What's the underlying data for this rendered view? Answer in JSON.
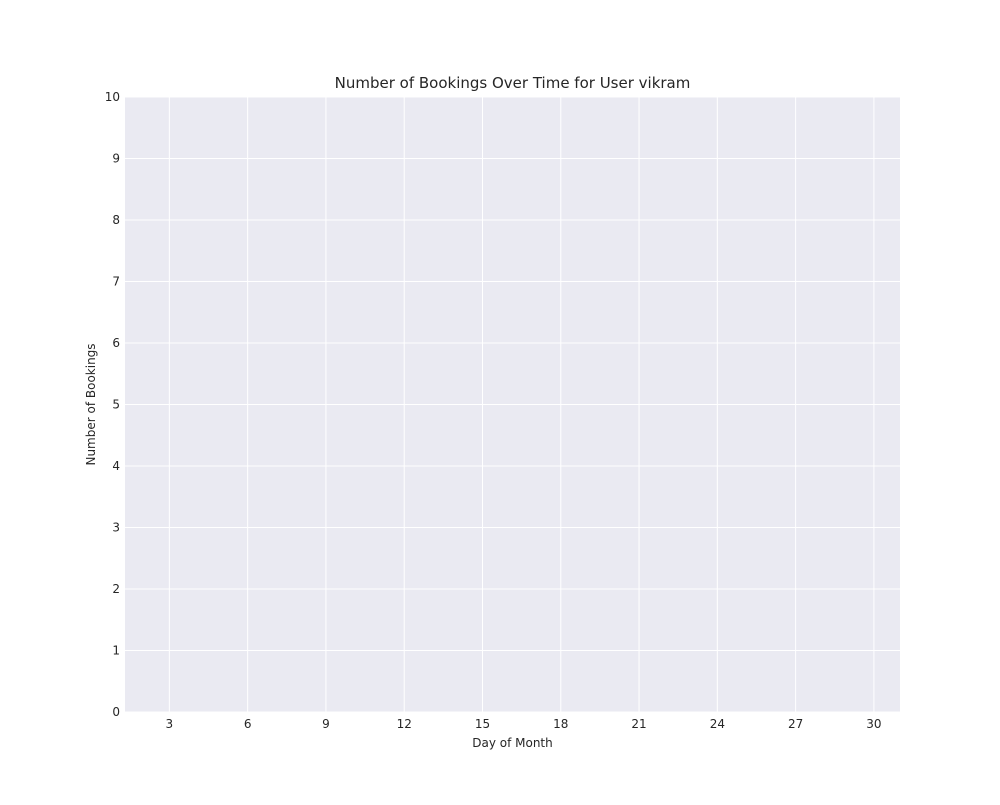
{
  "chart_data": {
    "type": "line",
    "title": "Number of Bookings Over Time for User vikram",
    "xlabel": "Day of Month",
    "ylabel": "Number of Bookings",
    "xlim": [
      1.3,
      31
    ],
    "ylim": [
      0,
      10
    ],
    "x_ticks": [
      3,
      6,
      9,
      12,
      15,
      18,
      21,
      24,
      27,
      30
    ],
    "y_ticks": [
      0,
      1,
      2,
      3,
      4,
      5,
      6,
      7,
      8,
      9,
      10
    ],
    "series": [],
    "grid": true,
    "colors": {
      "plot_background": "#eaeaf2",
      "grid": "#ffffff",
      "text": "#262626"
    }
  }
}
